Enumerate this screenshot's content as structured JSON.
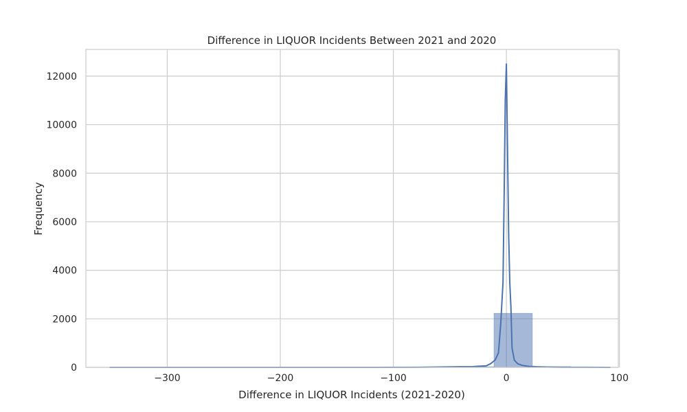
{
  "chart_data": {
    "type": "bar",
    "title": "Difference in LIQUOR Incidents Between 2021 and 2020",
    "xlabel": "Difference in LIQUOR Incidents (2021-2020)",
    "ylabel": "Frequency",
    "xlim": [
      -372,
      99
    ],
    "ylim": [
      0,
      13100
    ],
    "xticks": [
      -300,
      -200,
      -100,
      0,
      100
    ],
    "yticks": [
      0,
      2000,
      4000,
      6000,
      8000,
      10000,
      12000
    ],
    "xtick_labels": [
      "−300",
      "−200",
      "−100",
      "0",
      "100"
    ],
    "ytick_labels": [
      "0",
      "2000",
      "4000",
      "6000",
      "8000",
      "10000",
      "12000"
    ],
    "grid": true,
    "bar_color": "#4c72b0",
    "line_color": "#4c72b0",
    "histogram": {
      "bin_edges": [
        -351,
        -317,
        -283,
        -249,
        -215,
        -181,
        -147,
        -113,
        -79,
        -45,
        -11,
        23,
        57,
        91
      ],
      "counts": [
        2,
        0,
        0,
        0,
        0,
        0,
        0,
        0,
        3,
        30,
        2230,
        35,
        3
      ]
    },
    "kde": {
      "x": [
        -351,
        -300,
        -200,
        -120,
        -80,
        -50,
        -40,
        -30,
        -24,
        -18,
        -14,
        -10,
        -7,
        -5,
        -3,
        -2,
        -1,
        0,
        1,
        2,
        3,
        4,
        5,
        7,
        10,
        14,
        20,
        30,
        40,
        50,
        70,
        92
      ],
      "y": [
        0,
        0,
        0,
        0,
        5,
        20,
        30,
        30,
        50,
        60,
        150,
        300,
        600,
        1800,
        3500,
        7000,
        11000,
        12500,
        9000,
        5500,
        3500,
        2500,
        800,
        300,
        150,
        80,
        40,
        20,
        10,
        5,
        2,
        0
      ]
    }
  }
}
